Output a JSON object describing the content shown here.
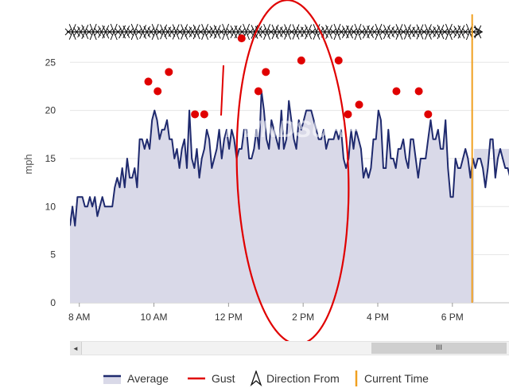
{
  "chart_data": {
    "type": "area",
    "watermark": "iWINDSURF",
    "ylabel": "mph",
    "ylim": [
      0,
      29
    ],
    "yticks": [
      0,
      5,
      10,
      15,
      20,
      25
    ],
    "x_start_hour": 7.75,
    "x_end_hour": 18.75,
    "xticks": [
      {
        "label": "8 AM",
        "hour": 8
      },
      {
        "label": "10 AM",
        "hour": 10
      },
      {
        "label": "12 PM",
        "hour": 12
      },
      {
        "label": "2 PM",
        "hour": 14
      },
      {
        "label": "4 PM",
        "hour": 16
      },
      {
        "label": "6 PM",
        "hour": 18
      }
    ],
    "current_time_hour": 18.53,
    "series": [
      {
        "name": "Average",
        "color": "#1f2a6e",
        "fill": "#d9d9e8",
        "x_start_hour": 7.75,
        "step_minutes": 4,
        "values": [
          8,
          10,
          8,
          11,
          11,
          11,
          10,
          10,
          11,
          10,
          11,
          9,
          10,
          11,
          10,
          10,
          10,
          10,
          12,
          13,
          12,
          14,
          12,
          15,
          13,
          13,
          14,
          12,
          17,
          17,
          16,
          17,
          16,
          19,
          20,
          19,
          17,
          18,
          18,
          19,
          17,
          17,
          15,
          16,
          14,
          16,
          17,
          14,
          20,
          15,
          14,
          16,
          13,
          15,
          16,
          18,
          17,
          14,
          15,
          16,
          18,
          15,
          17,
          18,
          16,
          18,
          17,
          15,
          16,
          16,
          18,
          18,
          15,
          15,
          16,
          18,
          16,
          22,
          20,
          17,
          16,
          19,
          18,
          17,
          16,
          20,
          16,
          17,
          21,
          19,
          17,
          16,
          19,
          18,
          19,
          20,
          20,
          20,
          19,
          18,
          17,
          17,
          18,
          16,
          17,
          17,
          17,
          18,
          17,
          18,
          15,
          14,
          15,
          18,
          16,
          18,
          17,
          16,
          13,
          14,
          13,
          14,
          17,
          17,
          20,
          19,
          14,
          14,
          18,
          15,
          15,
          14,
          16,
          16,
          17,
          15,
          14,
          17,
          17,
          15,
          13,
          15,
          15,
          15,
          17,
          19,
          17,
          17,
          18,
          16,
          16,
          19,
          14,
          11,
          11,
          15,
          14,
          14,
          15,
          16,
          15,
          13,
          15,
          14,
          15,
          15,
          14,
          12,
          14,
          17,
          17,
          13,
          15,
          16,
          15,
          14,
          14,
          13,
          14,
          15,
          15,
          14,
          13,
          17,
          17,
          12,
          16,
          16
        ],
        "draw_until_hour": 18.58
      },
      {
        "name": "Gust",
        "color": "#e00000",
        "points": [
          {
            "hour": 9.85,
            "value": 23
          },
          {
            "hour": 10.1,
            "value": 22
          },
          {
            "hour": 10.4,
            "value": 24
          },
          {
            "hour": 11.1,
            "value": 19.6
          },
          {
            "hour": 11.35,
            "value": 19.6
          },
          {
            "hour": 12.35,
            "value": 27.5
          },
          {
            "hour": 12.8,
            "value": 22
          },
          {
            "hour": 13.0,
            "value": 24
          },
          {
            "hour": 13.95,
            "value": 25.2
          },
          {
            "hour": 14.95,
            "value": 25.2
          },
          {
            "hour": 15.2,
            "value": 19.6
          },
          {
            "hour": 15.5,
            "value": 20.6
          },
          {
            "hour": 16.5,
            "value": 22
          },
          {
            "hour": 17.1,
            "value": 22
          },
          {
            "hour": 17.35,
            "value": 19.6
          }
        ]
      }
    ],
    "legend": [
      {
        "label": "Average",
        "kind": "area"
      },
      {
        "label": "Gust",
        "kind": "line"
      },
      {
        "label": "Direction From",
        "kind": "arrow"
      },
      {
        "label": "Current Time",
        "kind": "vline"
      }
    ],
    "current_time_color": "#f0a020",
    "annotation_color": "#e00000",
    "scroll_thumb_glyph": "III",
    "scroll_left_glyph": "◄"
  }
}
